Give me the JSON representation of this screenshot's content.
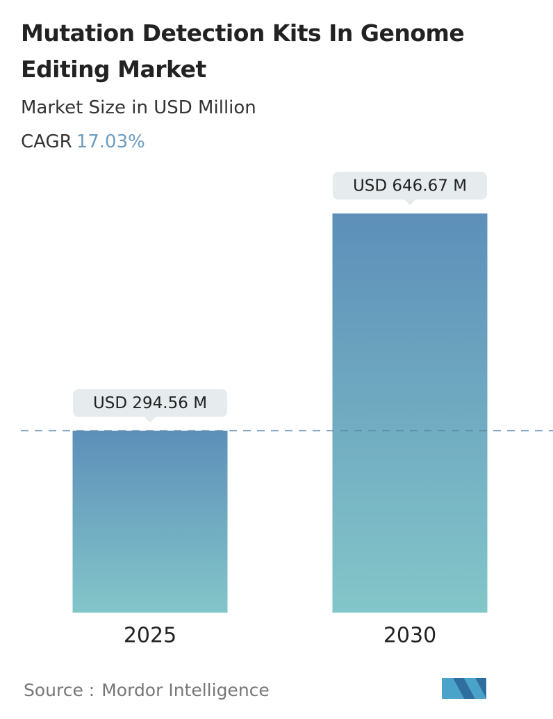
{
  "chart_data": {
    "type": "bar",
    "title": "Mutation Detection Kits In Genome Editing Market",
    "subtitle": "Market Size in USD Million",
    "cagr_label": "CAGR",
    "cagr": "17.03%",
    "categories": [
      "2025",
      "2030"
    ],
    "values": [
      294.56,
      646.67
    ],
    "value_labels": [
      "USD 294.56 M",
      "USD 646.67 M"
    ],
    "color": "#5d8fb9",
    "source_label": "Source :",
    "source": "Mordor Intelligence"
  }
}
